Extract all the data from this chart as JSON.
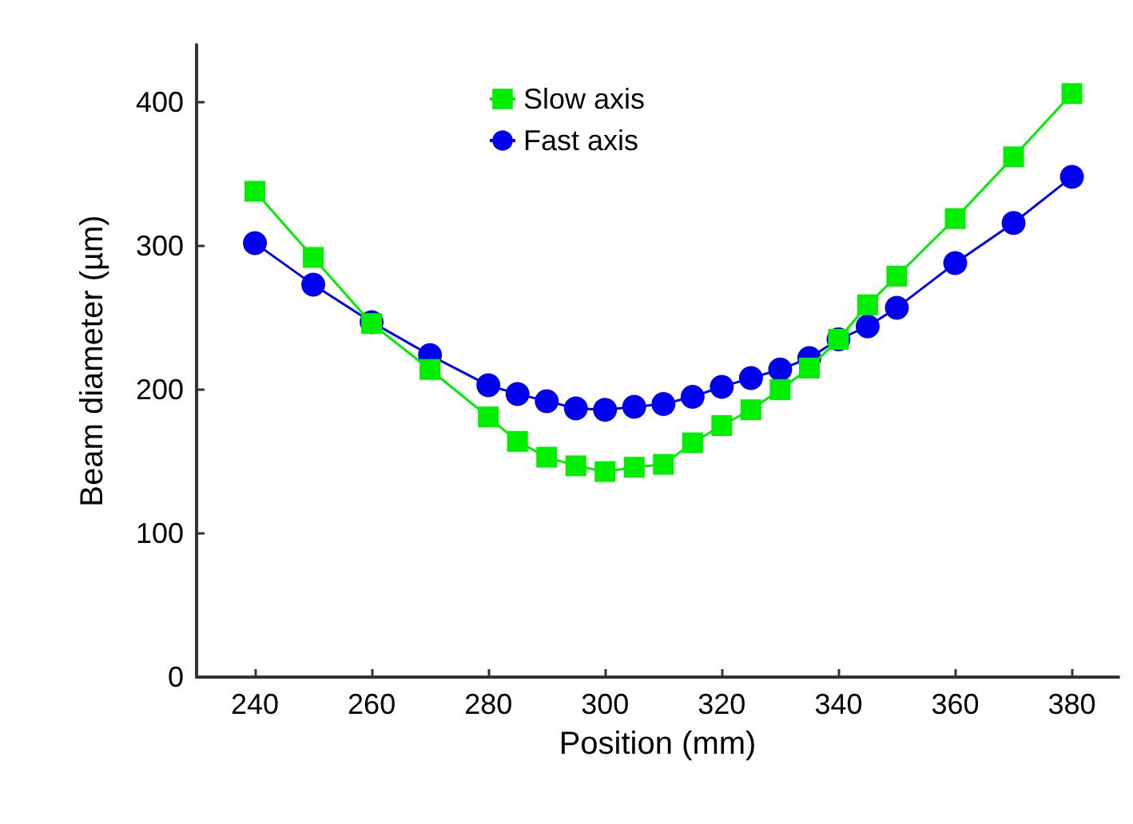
{
  "chart_data": {
    "type": "line",
    "xlabel": "Position (mm)",
    "ylabel": "Beam diameter (µm)",
    "x": [
      240,
      250,
      260,
      270,
      280,
      285,
      290,
      295,
      300,
      305,
      310,
      315,
      320,
      325,
      330,
      335,
      340,
      345,
      350,
      360,
      370,
      380
    ],
    "series": [
      {
        "name": "Slow axis",
        "color": "#00ee00",
        "marker": "square",
        "values": [
          338,
          292,
          246,
          214,
          181,
          164,
          153,
          147,
          143,
          146,
          148,
          163,
          175,
          186,
          200,
          215,
          235,
          259,
          279,
          319,
          362,
          406
        ]
      },
      {
        "name": "Fast axis",
        "color": "#0000ee",
        "marker": "circle",
        "values": [
          302,
          273,
          247,
          224,
          203,
          197,
          192,
          187,
          186,
          188,
          190,
          195,
          202,
          208,
          214,
          222,
          235,
          244,
          257,
          288,
          316,
          348
        ]
      }
    ],
    "xlim": [
      230,
      388
    ],
    "xticks": [
      240,
      260,
      280,
      300,
      320,
      340,
      360,
      380
    ],
    "ylim": [
      0,
      440
    ],
    "yticks": [
      0,
      100,
      200,
      300,
      400
    ],
    "grid": false,
    "legend": "top",
    "line_style": "solid"
  }
}
